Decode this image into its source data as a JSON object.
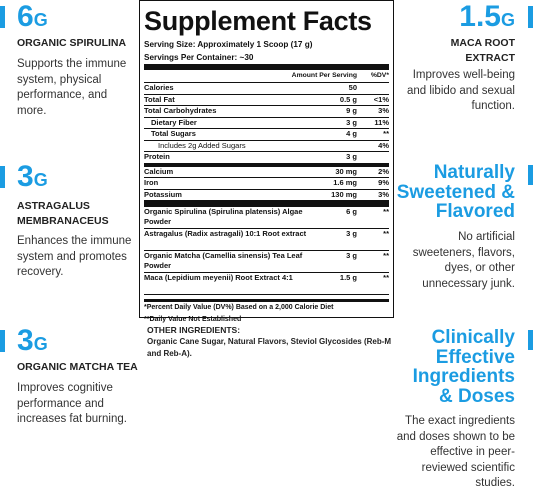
{
  "left": [
    {
      "amount": "6",
      "unit": "G",
      "title": "ORGANIC SPIRULINA",
      "text": "Supports the immune system, physical performance, and more."
    },
    {
      "amount": "3",
      "unit": "G",
      "title": "ASTRAGALUS MEMBRANACEUS",
      "text": "Enhances the immune system and promotes recovery."
    },
    {
      "amount": "3",
      "unit": "G",
      "title": "ORGANIC MATCHA TEA",
      "text": "Improves cognitive performance and increases fat burning."
    }
  ],
  "right": [
    {
      "amount": "1.5",
      "unit": "G",
      "title": "MACA ROOT EXTRACT",
      "text": "Improves well-being and libido and sexual function."
    },
    {
      "heading": "Naturally Sweetened & Flavored",
      "text": "No artificial sweeteners, flavors, dyes, or other unnecessary junk."
    },
    {
      "heading": "Clinically Effective Ingredients & Doses",
      "text": "The exact ingredients and doses shown to be effective in peer-reviewed scientific studies."
    }
  ],
  "facts": {
    "title": "Supplement Facts",
    "serving_size": "Serving Size: Approximately 1 Scoop (17 g)",
    "servings": "Servings Per Container: ~30",
    "header_amount": "Amount Per Serving",
    "header_dv": "%DV*",
    "nutrients": [
      {
        "name": "Calories",
        "amount": "50",
        "dv": "",
        "level": 0
      },
      {
        "name": "Total Fat",
        "amount": "0.5 g",
        "dv": "<1%",
        "level": 0
      },
      {
        "name": "Total Carbohydrates",
        "amount": "9 g",
        "dv": "3%",
        "level": 0
      },
      {
        "name": "Dietary Fiber",
        "amount": "3 g",
        "dv": "11%",
        "level": 1
      },
      {
        "name": "Total Sugars",
        "amount": "4 g",
        "dv": "**",
        "level": 1
      },
      {
        "name": "Includes 2g Added Sugars",
        "amount": "",
        "dv": "4%",
        "level": 2
      },
      {
        "name": "Protein",
        "amount": "3 g",
        "dv": "",
        "level": 0
      }
    ],
    "minerals": [
      {
        "name": "Calcium",
        "amount": "30 mg",
        "dv": "2%"
      },
      {
        "name": "Iron",
        "amount": "1.6 mg",
        "dv": "9%"
      },
      {
        "name": "Potassium",
        "amount": "130 mg",
        "dv": "3%"
      }
    ],
    "ingredients": [
      {
        "name": "Organic Spirulina (Spirulina platensis) Algae Powder",
        "amount": "6 g",
        "dv": "**"
      },
      {
        "name": "Astragalus (Radix astragali) 10:1 Root extract",
        "amount": "3 g",
        "dv": "**"
      },
      {
        "name": "Organic Matcha (Camellia sinensis) Tea Leaf Powder",
        "amount": "3 g",
        "dv": "**"
      },
      {
        "name": "Maca (Lepidium meyenii) Root Extract 4:1",
        "amount": "1.5 g",
        "dv": "**"
      }
    ],
    "footnotes": [
      "*Percent Daily Value (DV%) Based on a 2,000 Calorie Diet",
      "**Daily Value Not Established"
    ]
  },
  "other_ingredients": {
    "heading": "OTHER INGREDIENTS:",
    "text": "Organic Cane Sugar, Natural Flavors, Steviol Glycosides (Reb-M and Reb-A)."
  }
}
